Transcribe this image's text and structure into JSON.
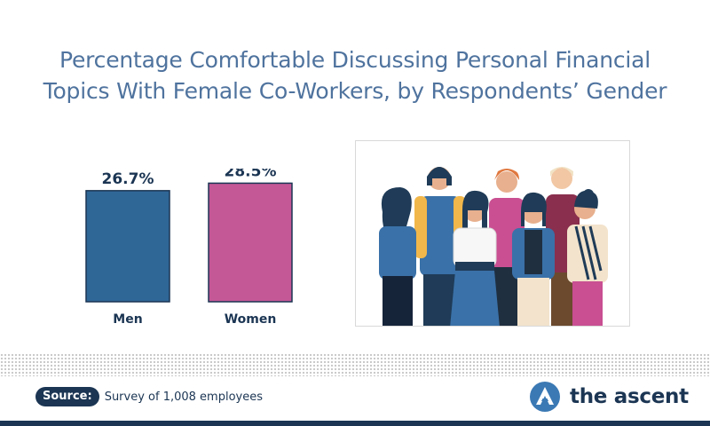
{
  "title": {
    "line1": "Percentage Comfortable Discussing Personal Financial",
    "line2": "Topics With Female Co-Workers, by Respondents’ Gender"
  },
  "chart_data": {
    "type": "bar",
    "title": "Percentage Comfortable Discussing Personal Financial Topics With Female Co-Workers, by Respondents’ Gender",
    "categories": [
      "Men",
      "Women"
    ],
    "values": [
      26.7,
      28.5
    ],
    "value_labels": [
      "26.7%",
      "28.5%"
    ],
    "colors": [
      "#2f6797",
      "#c45896"
    ],
    "xlabel": "",
    "ylabel": "",
    "ylim": [
      0,
      32
    ],
    "grid": false,
    "legend": "none"
  },
  "photo": {
    "icon": "group-of-women-illustration"
  },
  "footer": {
    "source_label": "Source:",
    "source_text": "Survey of 1,008 employees",
    "brand_icon": "ascent-logo-icon",
    "brand_name": "the ascent",
    "brand_color": "#1b3553",
    "logo_color": "#3b79b4"
  }
}
